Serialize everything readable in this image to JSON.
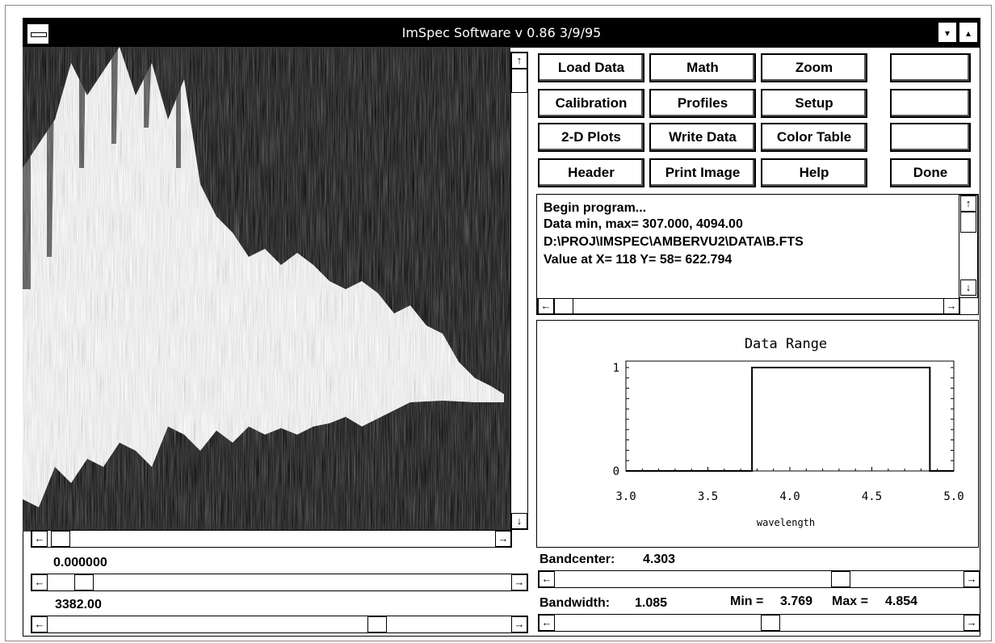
{
  "window": {
    "title": "ImSpec Software  v 0.86 3/9/95"
  },
  "menu": {
    "buttons": [
      [
        "Load Data",
        "Math",
        "Zoom",
        ""
      ],
      [
        "Calibration",
        "Profiles",
        "Setup",
        ""
      ],
      [
        "2-D Plots",
        "Write Data",
        "Color  Table",
        ""
      ],
      [
        "Header",
        "Print Image",
        "Help",
        "Done"
      ]
    ]
  },
  "log": {
    "lines": [
      "Begin program...",
      "Data min, max=     307.000,     4094.00",
      "D:\\PROJ\\IMSPEC\\AMBERVU2\\DATA\\B.FTS",
      "Value at X=    118 Y=     58=     622.794"
    ]
  },
  "controls": {
    "min_value": "0.000000",
    "max_value": "3382.00",
    "bandcenter_label": "Bandcenter:",
    "bandcenter_value": "4.303",
    "bandwidth_label": "Bandwidth:",
    "bandwidth_value": "1.085",
    "min_label": "Min =",
    "min_range": "3.769",
    "max_label": "Max =",
    "max_range": "4.854",
    "bandcenter_slider": 0.71,
    "bandwidth_slider": 0.53,
    "min_slider": 0.06,
    "max_slider": 0.72
  },
  "icons": {
    "up": "↑",
    "down": "↓",
    "left": "←",
    "right": "→",
    "minimize": "▾",
    "maximize": "▴"
  },
  "chart_data": {
    "type": "line",
    "title": "Data Range",
    "xlabel": "wavelength",
    "ylabel": "",
    "xlim": [
      3.0,
      5.0
    ],
    "ylim": [
      0,
      1
    ],
    "x_ticks": [
      "3.0",
      "3.5",
      "4.0",
      "4.5",
      "5.0"
    ],
    "y_ticks": [
      "0",
      "1"
    ],
    "series": [
      {
        "x": [
          3.0,
          3.769,
          3.769,
          4.854,
          4.854,
          5.0
        ],
        "y": [
          0,
          0,
          1,
          1,
          0,
          0
        ]
      }
    ]
  }
}
